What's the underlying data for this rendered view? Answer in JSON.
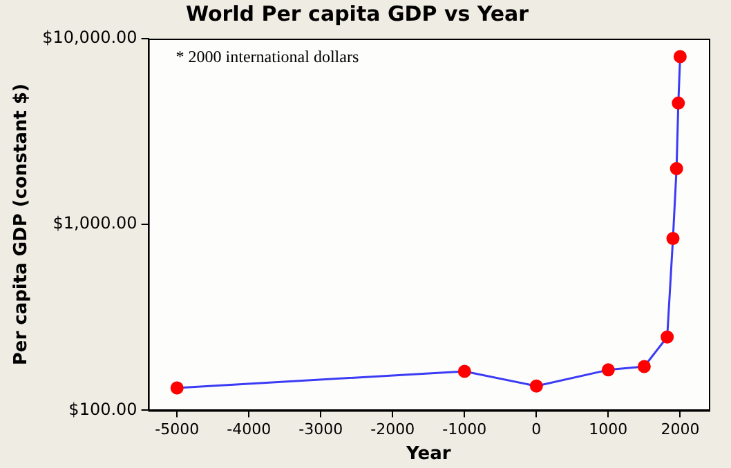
{
  "chart_data": {
    "type": "line",
    "title": "World Per capita GDP vs Year",
    "xlabel": "Year",
    "ylabel": "Per capita GDP (constant $)",
    "annotations": [
      "* 2000 international dollars"
    ],
    "x": [
      -5000,
      -1000,
      0,
      1000,
      1500,
      1820,
      1900,
      1950,
      1975,
      2000
    ],
    "series": [
      {
        "color": "#3b3bf5",
        "values": [
          132,
          162,
          135,
          165,
          172,
          248,
          840,
          2000,
          4500,
          8000
        ]
      }
    ],
    "xlim": [
      -5400,
      2400
    ],
    "xticks": [
      -5000,
      -4000,
      -3000,
      -2000,
      -1000,
      0,
      1000,
      2000
    ],
    "ylim": [
      100,
      10000
    ],
    "yticks": [
      {
        "value": 100,
        "label": "$100.00"
      },
      {
        "value": 1000,
        "label": "$1,000.00"
      },
      {
        "value": 10000,
        "label": "$10,000.00"
      }
    ],
    "log": "y",
    "grid": false,
    "legend": false,
    "marker": "circle",
    "line_style": "solid"
  }
}
